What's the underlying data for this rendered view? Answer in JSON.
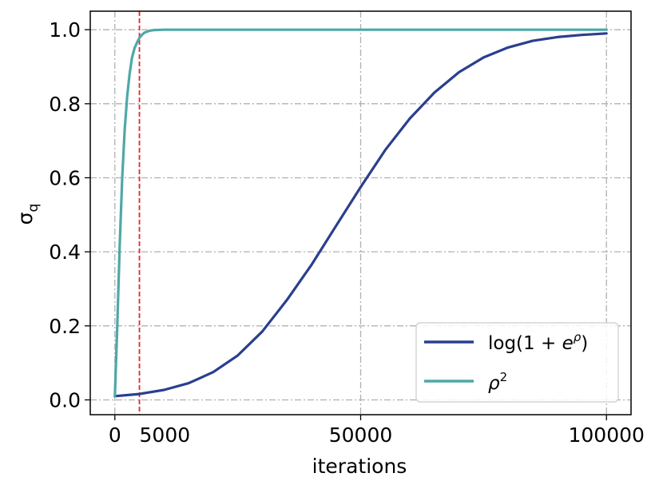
{
  "chart_data": {
    "type": "line",
    "title": "",
    "xlabel": "iterations",
    "ylabel_base": "σ",
    "ylabel_sub": "q",
    "xlim": [
      -5000,
      105000
    ],
    "ylim": [
      -0.04,
      1.05
    ],
    "xticks": [
      0,
      50000,
      100000
    ],
    "xtick_labels": [
      "0",
      "50000",
      "100000"
    ],
    "yticks": [
      0.0,
      0.2,
      0.4,
      0.6,
      0.8,
      1.0
    ],
    "ytick_labels": [
      "0.0",
      "0.2",
      "0.4",
      "0.6",
      "0.8",
      "1.0"
    ],
    "grid": true,
    "legend_position": "lower-right",
    "vline": {
      "x": 5000,
      "label": "5000",
      "color": "#e8262a"
    },
    "series": [
      {
        "name": "log(1 + e^ρ)",
        "color": "#2a3f8d",
        "x": [
          0,
          5000,
          10000,
          15000,
          20000,
          25000,
          30000,
          35000,
          40000,
          45000,
          50000,
          55000,
          60000,
          65000,
          70000,
          75000,
          80000,
          85000,
          90000,
          95000,
          100000
        ],
        "y": [
          0.01,
          0.016,
          0.027,
          0.045,
          0.075,
          0.12,
          0.185,
          0.27,
          0.365,
          0.47,
          0.575,
          0.675,
          0.76,
          0.83,
          0.885,
          0.925,
          0.952,
          0.97,
          0.98,
          0.986,
          0.99
        ]
      },
      {
        "name": "ρ^2",
        "color": "#4fa8a6",
        "x": [
          0,
          500,
          1000,
          1500,
          2000,
          2500,
          3000,
          3500,
          4000,
          4500,
          5000,
          5500,
          6000,
          7000,
          8000,
          10000,
          15000,
          20000,
          50000,
          100000
        ],
        "y": [
          0.01,
          0.2,
          0.42,
          0.6,
          0.73,
          0.82,
          0.88,
          0.925,
          0.95,
          0.965,
          0.978,
          0.986,
          0.992,
          0.997,
          0.999,
          1.0,
          1.0,
          1.0,
          1.0,
          1.0
        ]
      }
    ]
  }
}
